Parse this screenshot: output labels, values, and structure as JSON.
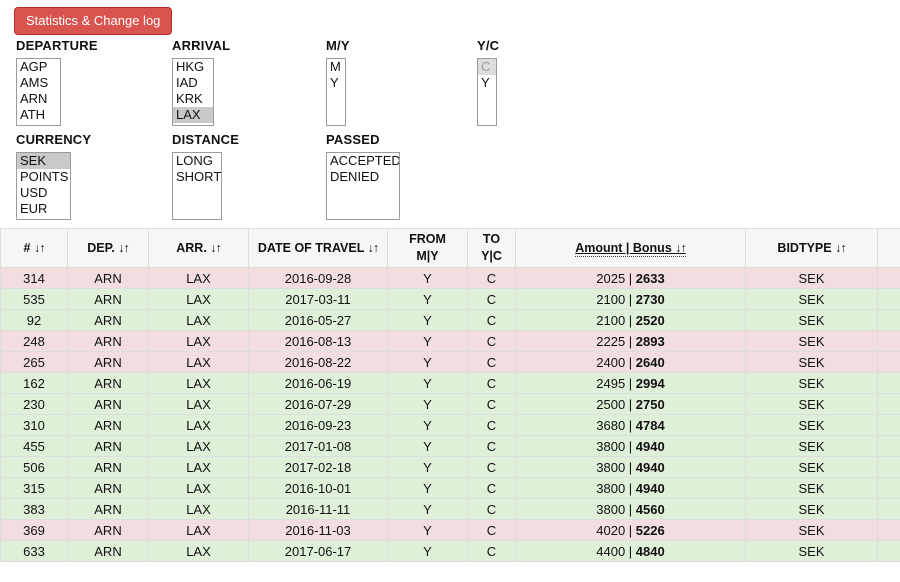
{
  "button": {
    "label": "Statistics & Change log"
  },
  "colors": {
    "accent_red": "#d9534f",
    "accent_red_border": "#b52b27",
    "header_bg": "#f6f6f6",
    "table_border": "#dddddd",
    "selected_option_bg": "#c9c9c9",
    "muted_option_bg": "#dddddd",
    "muted_option_text": "#999999",
    "denied_row_bg": "#f2dede",
    "accepted_row_bg": "#dff0d8"
  },
  "filters": [
    {
      "name": "departure",
      "label": "DEPARTURE",
      "options": [
        {
          "text": "AGP"
        },
        {
          "text": "AMS"
        },
        {
          "text": "ARN"
        },
        {
          "text": "ATH"
        }
      ]
    },
    {
      "name": "arrival",
      "label": "ARRIVAL",
      "options": [
        {
          "text": "HKG"
        },
        {
          "text": "IAD"
        },
        {
          "text": "KRK"
        },
        {
          "text": "LAX",
          "selected": true
        }
      ]
    },
    {
      "name": "my",
      "label": "M/Y",
      "options": [
        {
          "text": "M"
        },
        {
          "text": "Y"
        }
      ]
    },
    {
      "name": "yc",
      "label": "Y/C",
      "options": [
        {
          "text": "C",
          "muted": true
        },
        {
          "text": "Y"
        }
      ]
    },
    {
      "name": "currency",
      "label": "CURRENCY",
      "options": [
        {
          "text": "SEK",
          "selected": true
        },
        {
          "text": "POINTS"
        },
        {
          "text": "USD"
        },
        {
          "text": "EUR"
        }
      ]
    },
    {
      "name": "distance",
      "label": "DISTANCE",
      "options": [
        {
          "text": "LONG"
        },
        {
          "text": "SHORT"
        }
      ]
    },
    {
      "name": "passed",
      "label": "PASSED",
      "options": [
        {
          "text": "ACCEPTED"
        },
        {
          "text": "DENIED"
        }
      ]
    }
  ],
  "table": {
    "sort_indicator": "↓↑",
    "columns": [
      {
        "key": "bid-id",
        "label": "#",
        "sort": true
      },
      {
        "key": "dep",
        "label": "DEP.",
        "sort": true
      },
      {
        "key": "arr",
        "label": "ARR.",
        "sort": true
      },
      {
        "key": "date",
        "label": "DATE OF TRAVEL",
        "sort": true
      },
      {
        "key": "from",
        "label": "FROM",
        "sub": "M|Y"
      },
      {
        "key": "to",
        "label": "TO",
        "sub": "Y|C"
      },
      {
        "key": "amount-bonus",
        "label": "Amount | Bonus",
        "sort": true,
        "hint_underline": true
      },
      {
        "key": "bidtype",
        "label": "BIDTYPE",
        "sort": true
      },
      {
        "key": "extra",
        "label": ""
      }
    ],
    "rows": [
      {
        "id": "314",
        "dep": "ARN",
        "arr": "LAX",
        "date": "2016-09-28",
        "from": "Y",
        "to": "C",
        "amount": "2025",
        "bonus": "2633",
        "bidtype": "SEK",
        "status": "denied"
      },
      {
        "id": "535",
        "dep": "ARN",
        "arr": "LAX",
        "date": "2017-03-11",
        "from": "Y",
        "to": "C",
        "amount": "2100",
        "bonus": "2730",
        "bidtype": "SEK",
        "status": "accepted"
      },
      {
        "id": "92",
        "dep": "ARN",
        "arr": "LAX",
        "date": "2016-05-27",
        "from": "Y",
        "to": "C",
        "amount": "2100",
        "bonus": "2520",
        "bidtype": "SEK",
        "status": "accepted"
      },
      {
        "id": "248",
        "dep": "ARN",
        "arr": "LAX",
        "date": "2016-08-13",
        "from": "Y",
        "to": "C",
        "amount": "2225",
        "bonus": "2893",
        "bidtype": "SEK",
        "status": "denied"
      },
      {
        "id": "265",
        "dep": "ARN",
        "arr": "LAX",
        "date": "2016-08-22",
        "from": "Y",
        "to": "C",
        "amount": "2400",
        "bonus": "2640",
        "bidtype": "SEK",
        "status": "denied"
      },
      {
        "id": "162",
        "dep": "ARN",
        "arr": "LAX",
        "date": "2016-06-19",
        "from": "Y",
        "to": "C",
        "amount": "2495",
        "bonus": "2994",
        "bidtype": "SEK",
        "status": "accepted"
      },
      {
        "id": "230",
        "dep": "ARN",
        "arr": "LAX",
        "date": "2016-07-29",
        "from": "Y",
        "to": "C",
        "amount": "2500",
        "bonus": "2750",
        "bidtype": "SEK",
        "status": "accepted"
      },
      {
        "id": "310",
        "dep": "ARN",
        "arr": "LAX",
        "date": "2016-09-23",
        "from": "Y",
        "to": "C",
        "amount": "3680",
        "bonus": "4784",
        "bidtype": "SEK",
        "status": "accepted"
      },
      {
        "id": "455",
        "dep": "ARN",
        "arr": "LAX",
        "date": "2017-01-08",
        "from": "Y",
        "to": "C",
        "amount": "3800",
        "bonus": "4940",
        "bidtype": "SEK",
        "status": "accepted"
      },
      {
        "id": "506",
        "dep": "ARN",
        "arr": "LAX",
        "date": "2017-02-18",
        "from": "Y",
        "to": "C",
        "amount": "3800",
        "bonus": "4940",
        "bidtype": "SEK",
        "status": "accepted"
      },
      {
        "id": "315",
        "dep": "ARN",
        "arr": "LAX",
        "date": "2016-10-01",
        "from": "Y",
        "to": "C",
        "amount": "3800",
        "bonus": "4940",
        "bidtype": "SEK",
        "status": "accepted"
      },
      {
        "id": "383",
        "dep": "ARN",
        "arr": "LAX",
        "date": "2016-11-11",
        "from": "Y",
        "to": "C",
        "amount": "3800",
        "bonus": "4560",
        "bidtype": "SEK",
        "status": "accepted"
      },
      {
        "id": "369",
        "dep": "ARN",
        "arr": "LAX",
        "date": "2016-11-03",
        "from": "Y",
        "to": "C",
        "amount": "4020",
        "bonus": "5226",
        "bidtype": "SEK",
        "status": "denied"
      },
      {
        "id": "633",
        "dep": "ARN",
        "arr": "LAX",
        "date": "2017-06-17",
        "from": "Y",
        "to": "C",
        "amount": "4400",
        "bonus": "4840",
        "bidtype": "SEK",
        "status": "accepted"
      }
    ]
  }
}
